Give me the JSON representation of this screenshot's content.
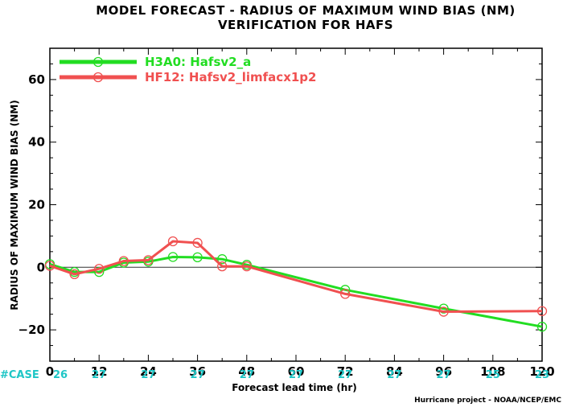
{
  "chart_data": {
    "type": "line",
    "title": "MODEL FORECAST - RADIUS OF MAXIMUM WIND BIAS (NM)",
    "subtitle": "VERIFICATION FOR HAFS",
    "xlabel": "Forecast lead time (hr)",
    "ylabel": "RADIUS OF MAXIMUM WIND BIAS (NM)",
    "xlim": [
      0,
      120
    ],
    "ylim": [
      -30,
      70
    ],
    "xticks": [
      0,
      12,
      24,
      36,
      48,
      60,
      72,
      84,
      96,
      108,
      120
    ],
    "yticks": [
      -20,
      0,
      20,
      40,
      60
    ],
    "zero_line": true,
    "legend_position": "top-left",
    "series": [
      {
        "name": "H3A0: Hafsv2_a",
        "color": "#22dd22",
        "x": [
          0,
          6,
          12,
          18,
          24,
          30,
          36,
          42,
          48,
          72,
          96,
          120
        ],
        "values": [
          1,
          -1.5,
          -1.5,
          1.5,
          1.8,
          3.3,
          3.2,
          2.6,
          0.8,
          -7.2,
          -13.2,
          -19
        ]
      },
      {
        "name": "HF12: Hafsv2_limfacx1p2",
        "color": "#f05050",
        "x": [
          0,
          6,
          12,
          18,
          24,
          30,
          36,
          42,
          48,
          72,
          96,
          120
        ],
        "values": [
          0.5,
          -2.2,
          -0.5,
          2,
          2.3,
          8.3,
          7.8,
          0.3,
          0.3,
          -8.5,
          -14.2,
          -14
        ]
      }
    ],
    "case_counts": {
      "label": "#CASE",
      "x": [
        0,
        12,
        24,
        36,
        48,
        60,
        72,
        84,
        96,
        108,
        120
      ],
      "values": [
        "26",
        "27",
        "27",
        "27",
        "27",
        "27",
        "27",
        "27",
        "27",
        "25",
        "23"
      ]
    },
    "credit": "Hurricane project - NOAA/NCEP/EMC"
  }
}
